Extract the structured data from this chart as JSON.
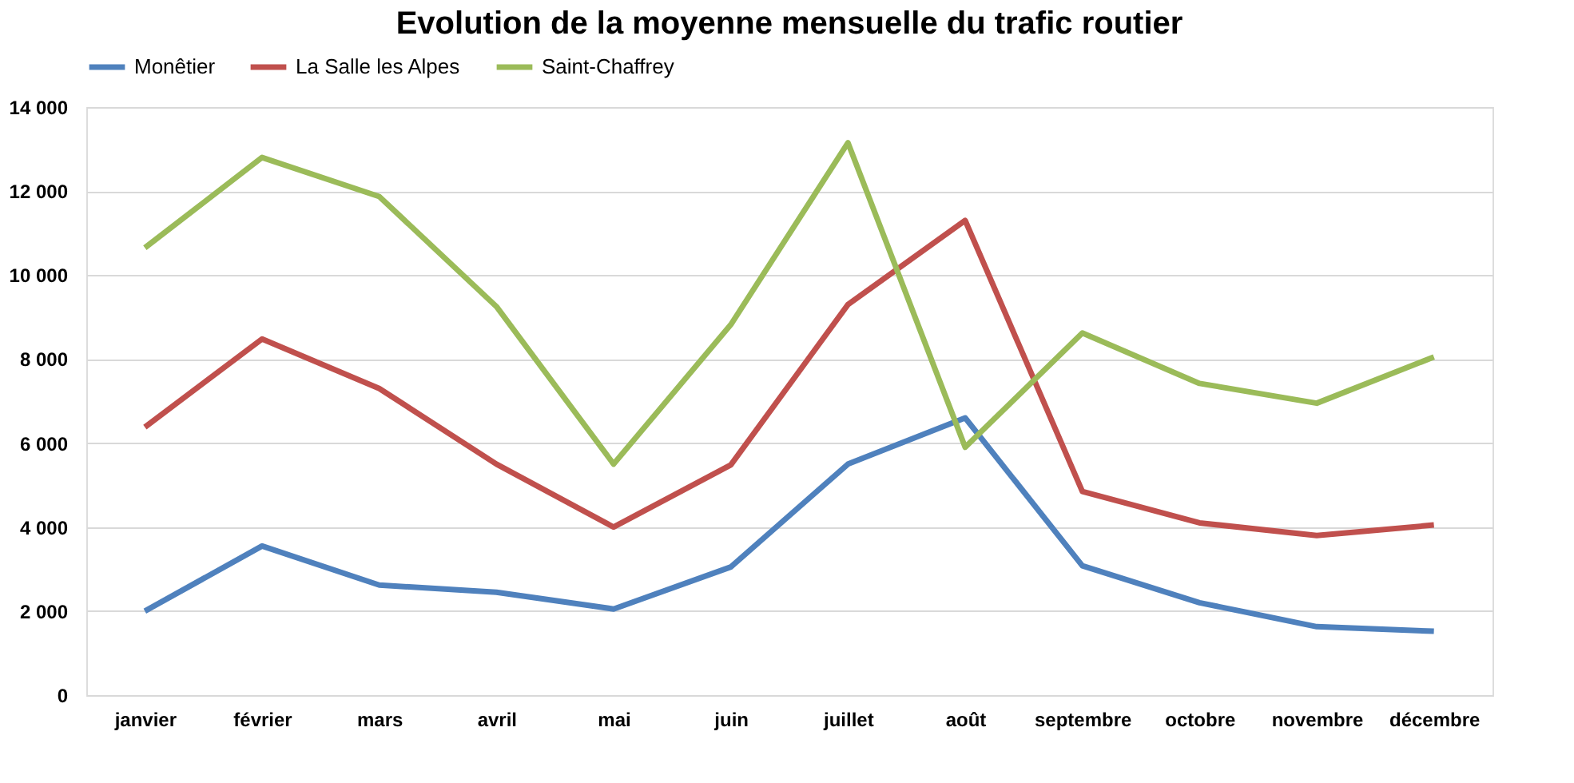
{
  "chart_data": {
    "type": "line",
    "title": "Evolution de la moyenne mensuelle du trafic routier",
    "categories": [
      "janvier",
      "février",
      "mars",
      "avril",
      "mai",
      "juin",
      "juillet",
      "août",
      "septembre",
      "octobre",
      "novembre",
      "décembre"
    ],
    "series": [
      {
        "name": "Monêtier",
        "color": "#4f81bd",
        "values": [
          2000,
          3550,
          2620,
          2450,
          2050,
          3050,
          5500,
          6600,
          3080,
          2200,
          1630,
          1520
        ]
      },
      {
        "name": "La Salle les Alpes",
        "color": "#c0504d",
        "values": [
          6380,
          8480,
          7300,
          5500,
          4000,
          5480,
          9300,
          11300,
          4850,
          4100,
          3800,
          4050
        ]
      },
      {
        "name": "Saint-Chaffrey",
        "color": "#9bbb59",
        "values": [
          10650,
          12800,
          11870,
          9250,
          5500,
          8820,
          13150,
          5900,
          8620,
          7420,
          6950,
          8050
        ]
      }
    ],
    "ylim": [
      0,
      14000
    ],
    "yticks": [
      {
        "value": 0,
        "label": "0"
      },
      {
        "value": 2000,
        "label": "2 000"
      },
      {
        "value": 4000,
        "label": "4 000"
      },
      {
        "value": 6000,
        "label": "6 000"
      },
      {
        "value": 8000,
        "label": "8 000"
      },
      {
        "value": 10000,
        "label": "10 000"
      },
      {
        "value": 12000,
        "label": "12 000"
      },
      {
        "value": 14000,
        "label": "14 000"
      }
    ],
    "grid": "y",
    "legend": "top",
    "marker": "none",
    "line_style": "solid"
  }
}
